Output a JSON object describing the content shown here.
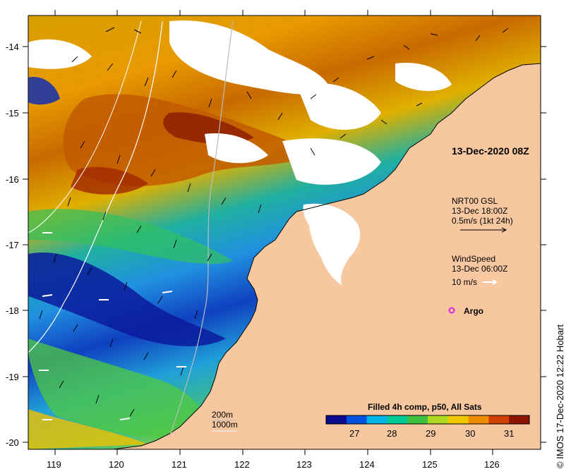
{
  "map": {
    "date_label": "13-Dec-2020 08Z",
    "x_ticks": [
      "119",
      "120",
      "121",
      "122",
      "123",
      "124",
      "125",
      "126"
    ],
    "y_ticks": [
      "-14",
      "-15",
      "-16",
      "-17",
      "-18",
      "-19",
      "-20"
    ],
    "ocean_color": "#2f9cd6",
    "land_color": "#f7c8a0",
    "cloud_color": "#ffffff"
  },
  "legend": {
    "currents_title": "NRT00 GSL",
    "currents_time": "13-Dec 18:00Z",
    "currents_scale": "0.5m/s (1kt 24h)",
    "wind_title": "WindSpeed",
    "wind_time": "13-Dec 06:00Z",
    "wind_scale": "10 m/s",
    "argo_label": "Argo",
    "argo_color": "#e020e0"
  },
  "isobaths": {
    "label_200": "200m",
    "label_1000": "1000m"
  },
  "colorbar": {
    "title": "Filled 4h comp, p50, All Sats",
    "tick_labels": [
      "27",
      "28",
      "29",
      "30",
      "31"
    ],
    "colors": [
      "#0a0a8c",
      "#0050e0",
      "#00b4e8",
      "#00c896",
      "#40c040",
      "#b0d820",
      "#f0c800",
      "#f08c00",
      "#d04000",
      "#8c1400"
    ]
  },
  "credit": "© IMOS 17-Dec-2020 12:22 Hobart"
}
